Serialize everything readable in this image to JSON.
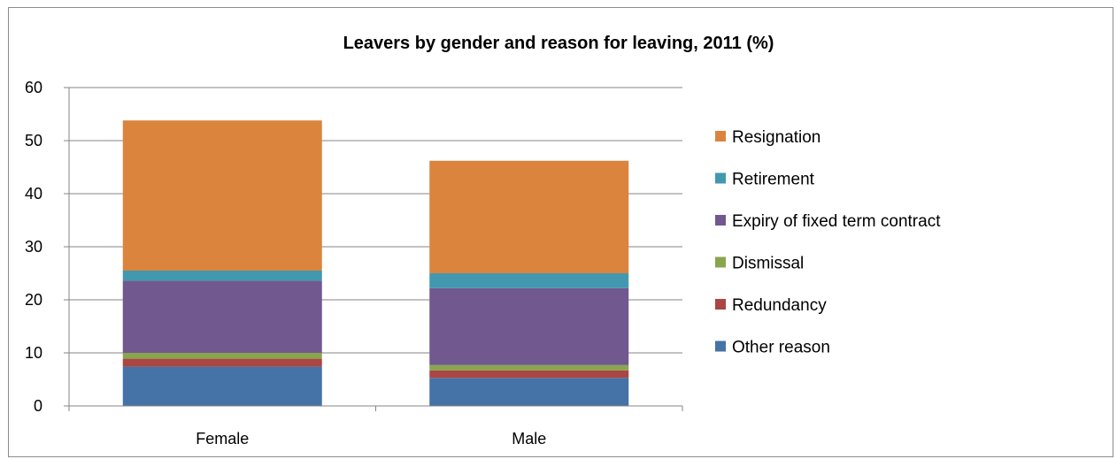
{
  "chart_data": {
    "type": "bar",
    "stacked": true,
    "title": "Leavers by gender and reason for leaving, 2011 (%)",
    "xlabel": "",
    "ylabel": "",
    "categories": [
      "Female",
      "Male"
    ],
    "ylim": [
      0,
      60
    ],
    "yticks": [
      0,
      10,
      20,
      30,
      40,
      50,
      60
    ],
    "grid": true,
    "legend_position": "right",
    "series": [
      {
        "name": "Other reason",
        "color": "#4572a7",
        "values": [
          7.4,
          5.3
        ]
      },
      {
        "name": "Redundancy",
        "color": "#aa4643",
        "values": [
          1.5,
          1.4
        ]
      },
      {
        "name": "Dismissal",
        "color": "#89a54e",
        "values": [
          1.1,
          1.0
        ]
      },
      {
        "name": "Expiry of fixed term contract",
        "color": "#71588f",
        "values": [
          13.6,
          14.5
        ]
      },
      {
        "name": "Retirement",
        "color": "#4198af",
        "values": [
          1.9,
          2.8
        ]
      },
      {
        "name": "Resignation",
        "color": "#db843d",
        "values": [
          28.3,
          21.2
        ]
      }
    ]
  }
}
